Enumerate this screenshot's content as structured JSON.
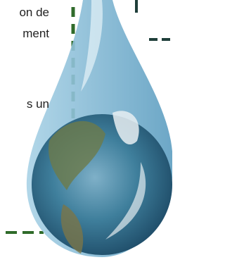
{
  "text": {
    "lines": [
      "on de",
      "ment",
      "s un"
    ]
  }
}
